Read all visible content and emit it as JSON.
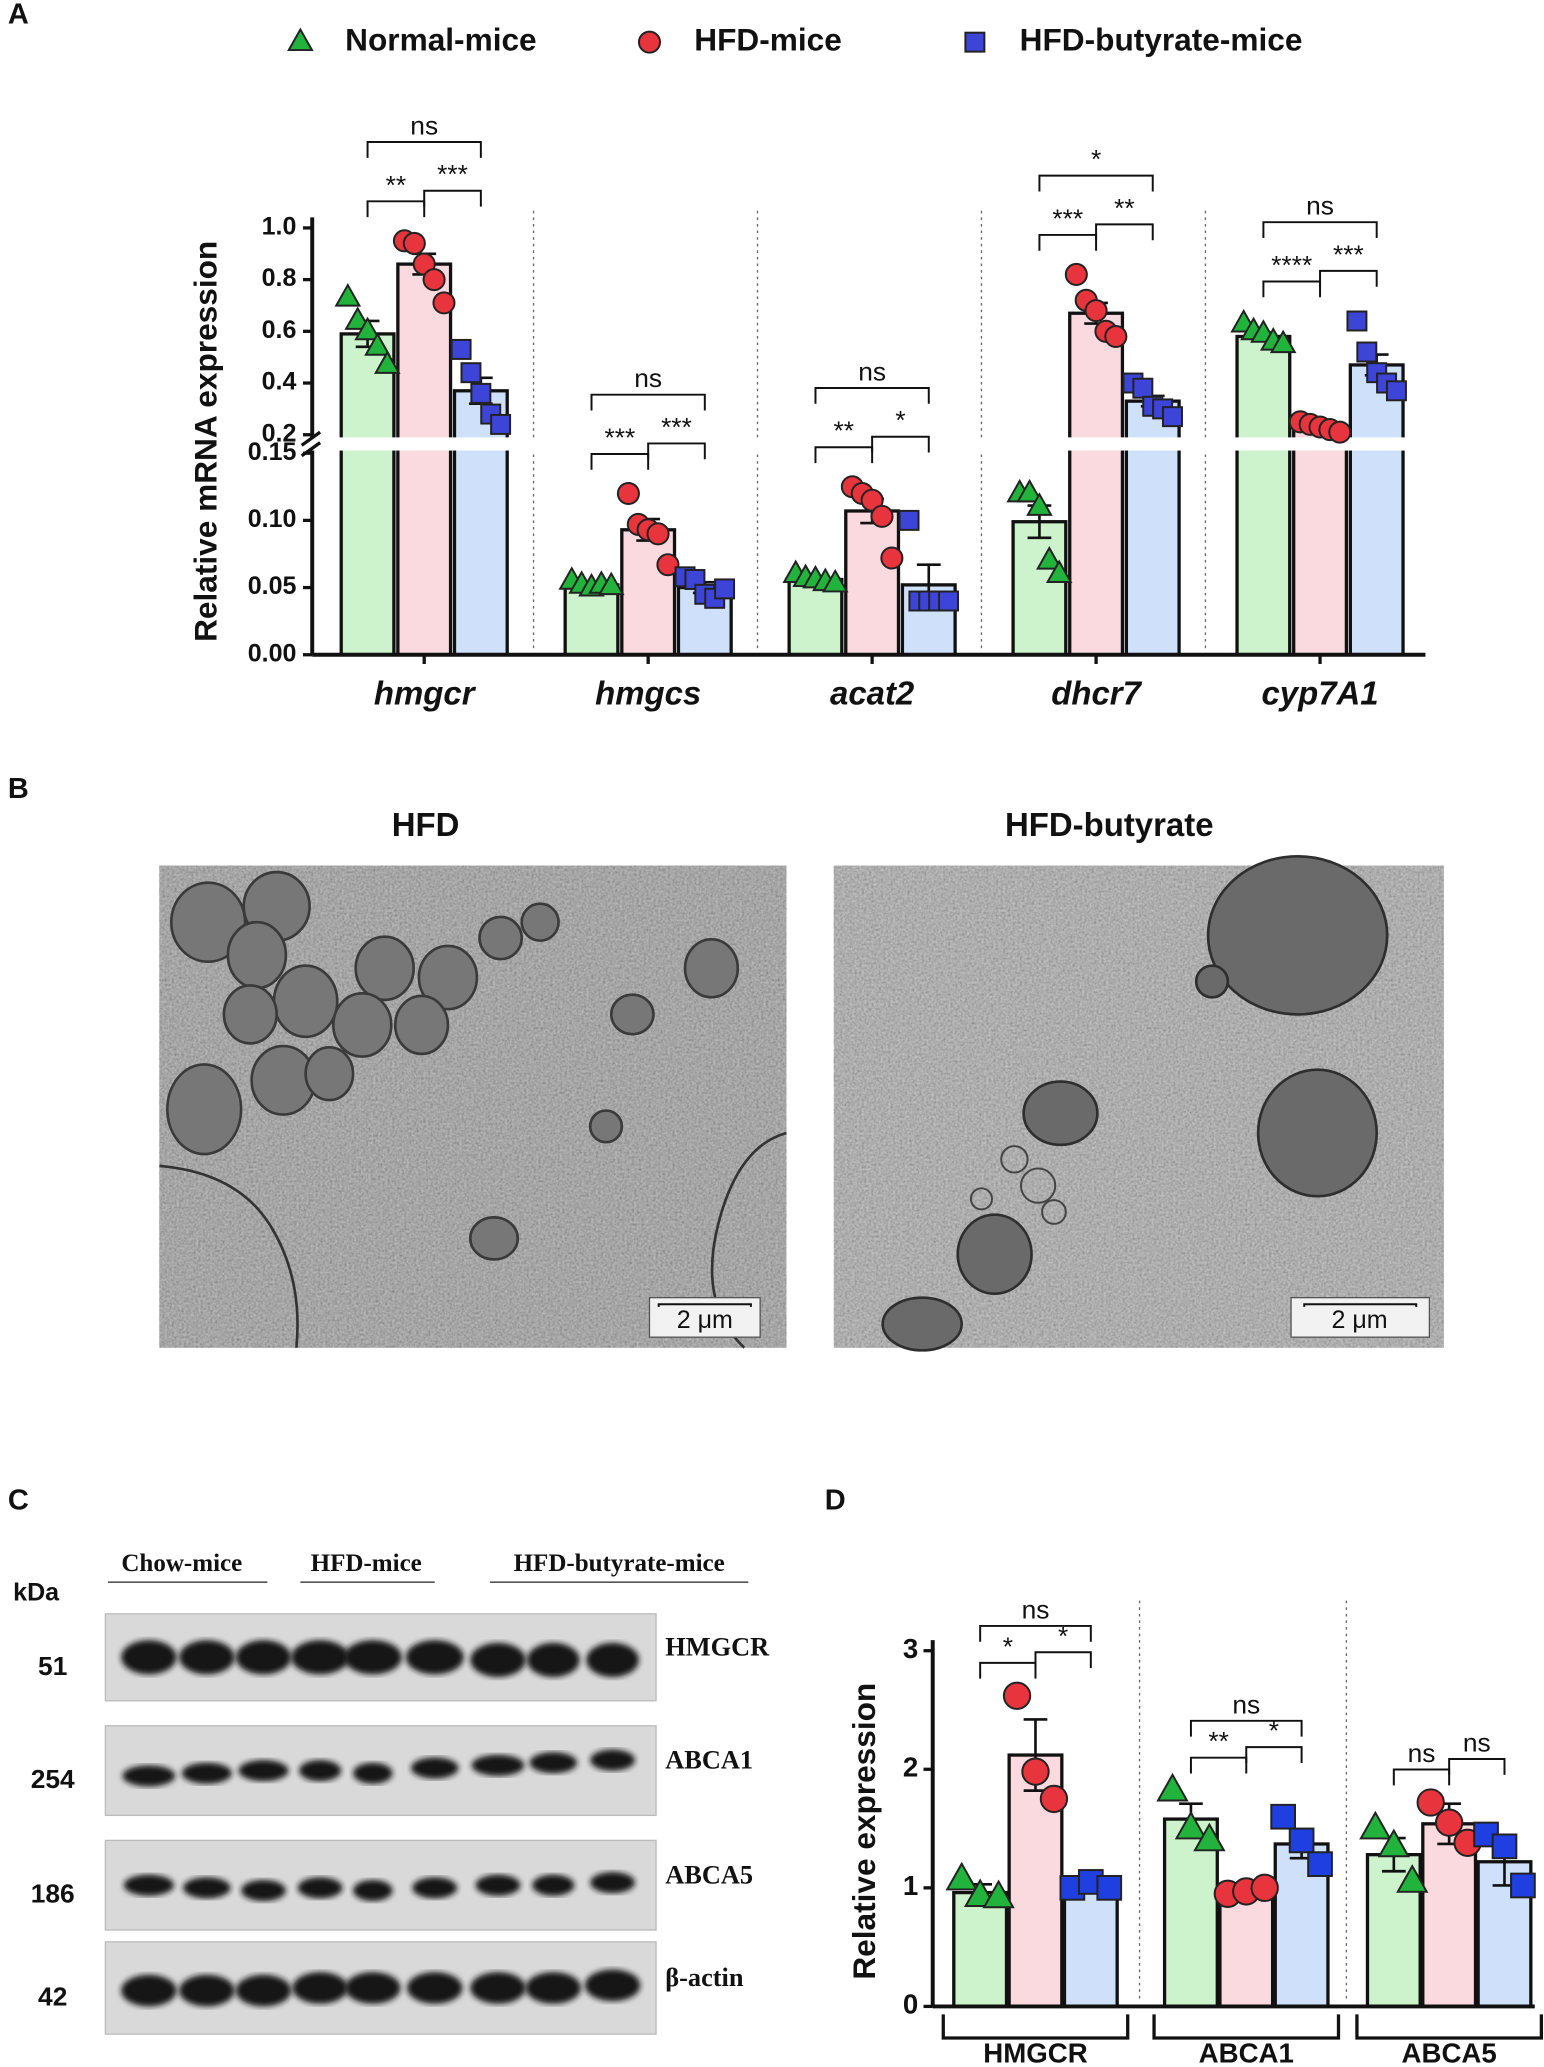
{
  "panel_labels": [
    "A",
    "B",
    "C",
    "D"
  ],
  "chart_data": [
    {
      "type": "bar",
      "categories": [
        "hmgcr",
        "hmgcs",
        "acat2",
        "dhcr7",
        "cyp7A1"
      ],
      "italic_categories": true,
      "ylabel": "Relative mRNA expression",
      "ylim": [
        0,
        1
      ],
      "y_break": [
        0.15,
        0.2
      ],
      "yticks": [
        {
          "value": 0,
          "label": "0.00"
        },
        0.05,
        {
          "value": 0.1,
          "label": "0.10"
        },
        0.15,
        0.2,
        0.4,
        0.6,
        0.8,
        {
          "value": 1,
          "label": "1.0"
        }
      ],
      "grid": false,
      "legend": "top",
      "series": [
        {
          "name": "Normal-mice",
          "color": "#22b33c",
          "bar_color": "#ccf3cc",
          "marker": "triangle",
          "values": [
            0.59,
            0.052,
            0.056,
            0.099,
            0.58
          ],
          "errors": [
            0.05,
            0.002,
            0.002,
            0.012,
            0.015
          ],
          "points": [
            [
              0.73,
              0.64,
              0.6,
              0.54,
              0.47
            ],
            [
              0.055,
              0.052,
              0.05,
              0.052,
              0.051
            ],
            [
              0.06,
              0.057,
              0.056,
              0.054,
              0.053
            ],
            [
              0.12,
              0.12,
              0.11,
              0.07,
              0.06
            ],
            [
              0.63,
              0.6,
              0.59,
              0.56,
              0.55
            ]
          ]
        },
        {
          "name": "HFD-mice",
          "color": "#e8343c",
          "bar_color": "#fadadf",
          "marker": "circle",
          "values": [
            0.86,
            0.093,
            0.107,
            0.67,
            0.23
          ],
          "errors": [
            0.04,
            0.008,
            0.009,
            0.04,
            0.008
          ],
          "points": [
            [
              0.95,
              0.94,
              0.86,
              0.8,
              0.71
            ],
            [
              0.12,
              0.097,
              0.093,
              0.09,
              0.067
            ],
            [
              0.125,
              0.12,
              0.115,
              0.103,
              0.072
            ],
            [
              0.82,
              0.72,
              0.68,
              0.6,
              0.58
            ],
            [
              0.25,
              0.24,
              0.23,
              0.22,
              0.21
            ]
          ]
        },
        {
          "name": "HFD-butyrate-mice",
          "color": "#3d45d8",
          "bar_color": "#cfe0fa",
          "marker": "square",
          "values": [
            0.37,
            0.05,
            0.052,
            0.33,
            0.47
          ],
          "errors": [
            0.05,
            0.004,
            0.015,
            0.02,
            0.04
          ],
          "points": [
            [
              0.53,
              0.44,
              0.36,
              0.28,
              0.24
            ],
            [
              0.058,
              0.056,
              0.045,
              0.042,
              0.049
            ],
            [
              0.1,
              0.04,
              0.04,
              0.04,
              0.04
            ],
            [
              0.4,
              0.38,
              0.31,
              0.3,
              0.27
            ],
            [
              0.64,
              0.52,
              0.44,
              0.4,
              0.37
            ]
          ]
        }
      ],
      "annotations": [
        [
          {
            "text": "**",
            "groups": [
              0,
              1
            ]
          },
          {
            "text": "***",
            "groups": [
              1,
              2
            ]
          },
          {
            "text": "ns",
            "groups": [
              0,
              2
            ]
          }
        ],
        [
          {
            "text": "***",
            "groups": [
              0,
              1
            ]
          },
          {
            "text": "***",
            "groups": [
              1,
              2
            ]
          },
          {
            "text": "ns",
            "groups": [
              0,
              2
            ]
          }
        ],
        [
          {
            "text": "**",
            "groups": [
              0,
              1
            ]
          },
          {
            "text": "*",
            "groups": [
              1,
              2
            ]
          },
          {
            "text": "ns",
            "groups": [
              0,
              2
            ]
          }
        ],
        [
          {
            "text": "***",
            "groups": [
              0,
              1
            ]
          },
          {
            "text": "**",
            "groups": [
              1,
              2
            ]
          },
          {
            "text": "*",
            "groups": [
              0,
              2
            ]
          }
        ],
        [
          {
            "text": "****",
            "groups": [
              0,
              1
            ]
          },
          {
            "text": "***",
            "groups": [
              1,
              2
            ]
          },
          {
            "text": "ns",
            "groups": [
              0,
              2
            ]
          }
        ]
      ]
    },
    {
      "type": "bar",
      "categories": [
        "HMGCR",
        "ABCA1",
        "ABCA5"
      ],
      "italic_categories": false,
      "ylabel": "Relative expression",
      "ylim": [
        0,
        3
      ],
      "yticks": [
        0,
        1,
        2,
        3
      ],
      "grid": false,
      "series": [
        {
          "color": "#22b33c",
          "bar_color": "#ccf3cc",
          "marker": "triangle",
          "values": [
            0.96,
            1.58,
            1.28
          ],
          "errors": [
            0.07,
            0.13,
            0.14
          ],
          "points": [
            [
              1.07,
              0.93,
              0.92
            ],
            [
              1.82,
              1.5,
              1.4
            ],
            [
              1.5,
              1.35,
              1.05
            ]
          ]
        },
        {
          "color": "#e8343c",
          "bar_color": "#fadadf",
          "marker": "circle",
          "values": [
            2.12,
            0.97,
            1.54
          ],
          "errors": [
            0.3,
            0.02,
            0.17
          ],
          "points": [
            [
              2.62,
              1.98,
              1.75
            ],
            [
              0.95,
              0.97,
              1.0
            ],
            [
              1.72,
              1.55,
              1.38
            ]
          ]
        },
        {
          "color": "#1f3fe0",
          "bar_color": "#cfe0fa",
          "marker": "square",
          "values": [
            1.02,
            1.37,
            1.22
          ],
          "errors": [
            0.04,
            0.12,
            0.2
          ],
          "points": [
            [
              1.0,
              1.05,
              1.0
            ],
            [
              1.6,
              1.4,
              1.2
            ],
            [
              1.45,
              1.35,
              1.02
            ]
          ]
        }
      ],
      "annotations": [
        [
          {
            "text": "*",
            "groups": [
              0,
              1
            ]
          },
          {
            "text": "*",
            "groups": [
              1,
              2
            ]
          },
          {
            "text": "ns",
            "groups": [
              0,
              2
            ]
          }
        ],
        [
          {
            "text": "**",
            "groups": [
              0,
              1
            ]
          },
          {
            "text": "*",
            "groups": [
              1,
              2
            ]
          },
          {
            "text": "ns",
            "groups": [
              0,
              2
            ]
          }
        ],
        [
          {
            "text": "ns",
            "groups": [
              0,
              1
            ]
          },
          {
            "text": "ns",
            "groups": [
              1,
              2
            ]
          }
        ]
      ]
    }
  ],
  "micrographs": {
    "titles": [
      "HFD",
      "HFD-butyrate"
    ],
    "scale_bar": "2 μm"
  },
  "western_blot": {
    "unit": "kDa",
    "groups": [
      "Chow-mice",
      "HFD-mice",
      "HFD-butyrate-mice"
    ],
    "rows": [
      {
        "kda": 51,
        "protein": "HMGCR"
      },
      {
        "kda": 254,
        "protein": "ABCA1"
      },
      {
        "kda": 186,
        "protein": "ABCA5"
      },
      {
        "kda": 42,
        "protein": "β-actin"
      }
    ]
  }
}
